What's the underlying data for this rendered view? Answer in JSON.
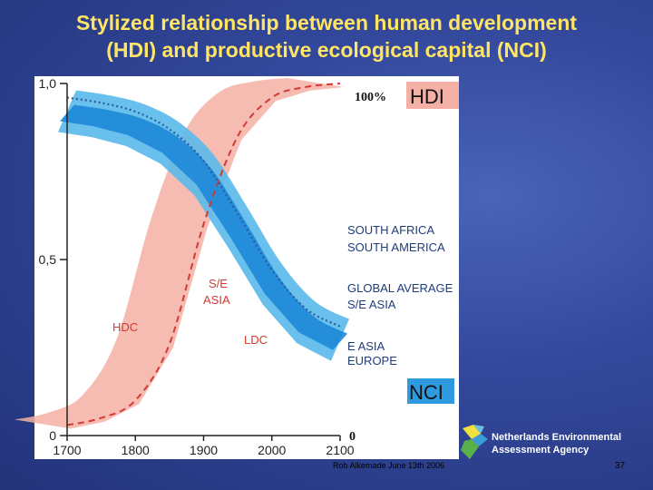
{
  "slide": {
    "title_line1": "Stylized relationship between human development",
    "title_line2": "(HDI) and productive ecological capital (NCI)",
    "footer": "Rob Alkemade June 13th 2006",
    "page_number": "37",
    "logo_line1": "Netherlands Environmental",
    "logo_line2": "Assessment Agency"
  },
  "chart_data": {
    "type": "line",
    "x_ticks": [
      "1700",
      "1800",
      "1900",
      "2000",
      "2100"
    ],
    "y_ticks": [
      "0",
      "0,5",
      "1,0"
    ],
    "xlim": [
      1700,
      2100
    ],
    "ylim": [
      0,
      1
    ],
    "top_label_percent": "100%",
    "top_label_hdi": "HDI",
    "bottom_label_zero": "0",
    "bottom_label_nci": "NCI",
    "curve_labels": {
      "hdc": "HDC",
      "ldc": "LDC",
      "se_asia_1": "S/E",
      "se_asia_2": "ASIA"
    },
    "right_labels": [
      "SOUTH AFRICA",
      "SOUTH AMERICA",
      "GLOBAL AVERAGE",
      "S/E ASIA",
      "E ASIA",
      "EUROPE"
    ],
    "colors": {
      "nci_band_outer": "#5ab9ea",
      "nci_band_inner": "#1e88d8",
      "nci_average": "#2a5d9e",
      "hdi_band": "#f4b0a4",
      "hdi_dashed": "#d23a35",
      "label_text": "#1f3d7a",
      "curve_label_text": "#d33a33"
    },
    "series": [
      {
        "name": "NCI",
        "x": [
          1700,
          1750,
          1800,
          1850,
          1900,
          1950,
          2000,
          2050,
          2100
        ],
        "y": [
          0.96,
          0.945,
          0.92,
          0.87,
          0.78,
          0.63,
          0.47,
          0.36,
          0.31
        ]
      },
      {
        "name": "HDI",
        "x": [
          1700,
          1750,
          1800,
          1850,
          1900,
          1950,
          2000,
          2050,
          2100
        ],
        "y": [
          0.03,
          0.05,
          0.1,
          0.26,
          0.6,
          0.85,
          0.96,
          0.99,
          1.0
        ]
      }
    ]
  }
}
